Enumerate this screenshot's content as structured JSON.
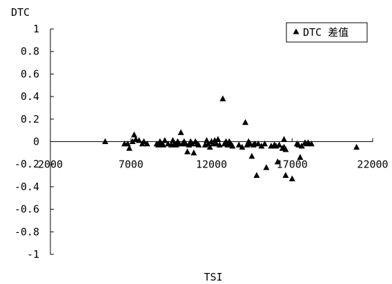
{
  "chart_data": {
    "type": "scatter",
    "title": "",
    "xlabel": "TSI",
    "ylabel": "DTC",
    "xlim": [
      2000,
      22000
    ],
    "ylim": [
      -1,
      1
    ],
    "xticks": [
      "2000",
      "7000",
      "12000",
      "17000",
      "22000"
    ],
    "yticks": [
      "1",
      "0.8",
      "0.6",
      "0.4",
      "0.2",
      "0",
      "-0.2",
      "-0.4",
      "-0.6",
      "-0.8",
      "-1"
    ],
    "grid": false,
    "legend": {
      "position": "top-right",
      "marker": "triangle"
    },
    "series": [
      {
        "name": "DTC 差值",
        "color": "#000000",
        "marker": "triangle",
        "points": [
          [
            5400,
            0.0
          ],
          [
            6600,
            -0.02
          ],
          [
            6800,
            -0.02
          ],
          [
            6900,
            -0.06
          ],
          [
            7100,
            0.0
          ],
          [
            7200,
            0.06
          ],
          [
            7300,
            0.02
          ],
          [
            7500,
            0.01
          ],
          [
            7700,
            -0.02
          ],
          [
            7800,
            0.0
          ],
          [
            8000,
            -0.02
          ],
          [
            8600,
            -0.02
          ],
          [
            8700,
            -0.03
          ],
          [
            8800,
            0.0
          ],
          [
            8900,
            -0.02
          ],
          [
            9000,
            -0.03
          ],
          [
            9100,
            0.01
          ],
          [
            9300,
            -0.02
          ],
          [
            9500,
            -0.03
          ],
          [
            9600,
            0.01
          ],
          [
            9700,
            -0.02
          ],
          [
            9800,
            -0.03
          ],
          [
            9900,
            0.0
          ],
          [
            10000,
            -0.02
          ],
          [
            10100,
            0.08
          ],
          [
            10200,
            -0.02
          ],
          [
            10300,
            0.0
          ],
          [
            10400,
            -0.02
          ],
          [
            10500,
            -0.09
          ],
          [
            10600,
            -0.03
          ],
          [
            10700,
            0.0
          ],
          [
            10800,
            -0.02
          ],
          [
            10900,
            -0.1
          ],
          [
            11000,
            0.0
          ],
          [
            11100,
            -0.02
          ],
          [
            11200,
            -0.03
          ],
          [
            11600,
            -0.03
          ],
          [
            11700,
            0.01
          ],
          [
            11800,
            -0.02
          ],
          [
            11900,
            -0.05
          ],
          [
            12000,
            0.0
          ],
          [
            12100,
            -0.02
          ],
          [
            12200,
            0.01
          ],
          [
            12300,
            -0.02
          ],
          [
            12400,
            0.02
          ],
          [
            12500,
            -0.03
          ],
          [
            12700,
            0.38
          ],
          [
            12800,
            -0.02
          ],
          [
            12900,
            0.0
          ],
          [
            13000,
            -0.03
          ],
          [
            13100,
            0.0
          ],
          [
            13200,
            -0.02
          ],
          [
            13300,
            -0.04
          ],
          [
            13700,
            -0.03
          ],
          [
            13900,
            -0.05
          ],
          [
            14100,
            0.17
          ],
          [
            14200,
            -0.03
          ],
          [
            14300,
            0.0
          ],
          [
            14400,
            -0.02
          ],
          [
            14500,
            -0.13
          ],
          [
            14600,
            -0.03
          ],
          [
            14700,
            -0.02
          ],
          [
            14800,
            -0.3
          ],
          [
            14900,
            -0.02
          ],
          [
            15100,
            -0.04
          ],
          [
            15300,
            -0.02
          ],
          [
            15400,
            -0.23
          ],
          [
            15700,
            -0.04
          ],
          [
            15900,
            -0.03
          ],
          [
            16000,
            -0.04
          ],
          [
            16100,
            -0.18
          ],
          [
            16200,
            -0.03
          ],
          [
            16400,
            -0.06
          ],
          [
            16500,
            0.02
          ],
          [
            16500,
            -0.05
          ],
          [
            16600,
            -0.07
          ],
          [
            16600,
            -0.3
          ],
          [
            17000,
            -0.33
          ],
          [
            17300,
            -0.02
          ],
          [
            17400,
            -0.03
          ],
          [
            17500,
            -0.14
          ],
          [
            17600,
            -0.04
          ],
          [
            17800,
            -0.01
          ],
          [
            17900,
            -0.02
          ],
          [
            18000,
            -0.01
          ],
          [
            18200,
            -0.02
          ],
          [
            21000,
            -0.05
          ]
        ]
      }
    ]
  }
}
